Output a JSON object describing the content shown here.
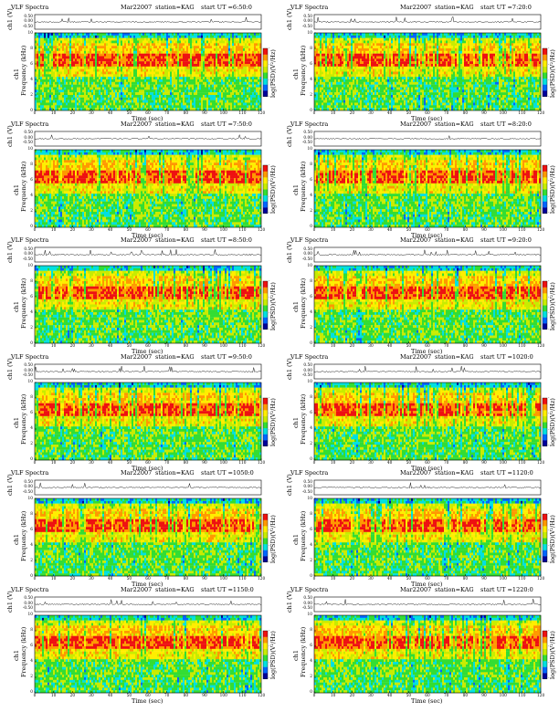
{
  "chart_data": [
    {
      "type": "heatmap",
      "title": "VLF Spectra",
      "date": "Mar22007",
      "station": "station=KAG",
      "start": "start  UT =6:50:0",
      "series": [
        {
          "name": "ch1"
        }
      ],
      "xlabel": "Time (sec)",
      "ylabel": "Frequency (kHz)",
      "waveform_label": "ch1 (V)",
      "colorbar_label": "log(PSD)(V²/Hz)",
      "xlim": [
        0,
        120
      ],
      "ylim": [
        0,
        10
      ],
      "x_ticks": [
        0,
        10,
        20,
        30,
        40,
        50,
        60,
        70,
        80,
        90,
        100,
        110,
        120
      ],
      "y_ticks": [
        0,
        2,
        4,
        6,
        8,
        10
      ],
      "waveform_ticks": [
        "0.50",
        "0.00",
        "-0.50"
      ],
      "colorbar_ticks": [
        "-",
        "-",
        "-",
        "-"
      ],
      "grid": false,
      "colormap": [
        "#00009a",
        "#0066ff",
        "#00e0e0",
        "#33dd33",
        "#c8ec00",
        "#ffee00",
        "#ff9900",
        "#ee1111"
      ]
    },
    {
      "type": "heatmap",
      "title": "VLF Spectra",
      "date": "Mar22007",
      "station": "station=KAG",
      "start": "start  UT =7:20:0",
      "series": [
        {
          "name": "ch1"
        }
      ],
      "xlabel": "Time (sec)",
      "ylabel": "Frequency (kHz)",
      "waveform_label": "ch1 (V)",
      "colorbar_label": "log(PSD)(V²/Hz)",
      "xlim": [
        0,
        120
      ],
      "ylim": [
        0,
        10
      ],
      "x_ticks": [
        0,
        10,
        20,
        30,
        40,
        50,
        60,
        70,
        80,
        90,
        100,
        110,
        120
      ],
      "y_ticks": [
        0,
        2,
        4,
        6,
        8,
        10
      ],
      "waveform_ticks": [
        "0.50",
        "0.00",
        "-0.50"
      ],
      "colorbar_ticks": [
        "-",
        "-",
        "-",
        "-"
      ],
      "grid": false,
      "colormap": [
        "#00009a",
        "#0066ff",
        "#00e0e0",
        "#33dd33",
        "#c8ec00",
        "#ffee00",
        "#ff9900",
        "#ee1111"
      ]
    },
    {
      "type": "heatmap",
      "title": "VLF Spectra",
      "date": "Mar22007",
      "station": "station=KAG",
      "start": "start  UT =7:50:0",
      "series": [
        {
          "name": "ch1"
        }
      ],
      "xlabel": "Time (sec)",
      "ylabel": "Frequency (kHz)",
      "waveform_label": "ch1 (V)",
      "colorbar_label": "log(PSD)(V²/Hz)",
      "xlim": [
        0,
        120
      ],
      "ylim": [
        0,
        10
      ],
      "x_ticks": [
        0,
        10,
        20,
        30,
        40,
        50,
        60,
        70,
        80,
        90,
        100,
        110,
        120
      ],
      "y_ticks": [
        0,
        2,
        4,
        6,
        8,
        10
      ],
      "waveform_ticks": [
        "0.50",
        "0.00",
        "-0.50"
      ],
      "colorbar_ticks": [
        "-",
        "-",
        "-",
        "-"
      ],
      "grid": false,
      "colormap": [
        "#00009a",
        "#0066ff",
        "#00e0e0",
        "#33dd33",
        "#c8ec00",
        "#ffee00",
        "#ff9900",
        "#ee1111"
      ]
    },
    {
      "type": "heatmap",
      "title": "VLF Spectra",
      "date": "Mar22007",
      "station": "station=KAG",
      "start": "start  UT =8:20:0",
      "series": [
        {
          "name": "ch1"
        }
      ],
      "xlabel": "Time (sec)",
      "ylabel": "Frequency (kHz)",
      "waveform_label": "ch1 (V)",
      "colorbar_label": "log(PSD)(V²/Hz)",
      "xlim": [
        0,
        120
      ],
      "ylim": [
        0,
        10
      ],
      "x_ticks": [
        0,
        10,
        20,
        30,
        40,
        50,
        60,
        70,
        80,
        90,
        100,
        110,
        120
      ],
      "y_ticks": [
        0,
        2,
        4,
        6,
        8,
        10
      ],
      "waveform_ticks": [
        "0.50",
        "0.00",
        "-0.50"
      ],
      "colorbar_ticks": [
        "-",
        "-",
        "-",
        "-"
      ],
      "grid": false,
      "colormap": [
        "#00009a",
        "#0066ff",
        "#00e0e0",
        "#33dd33",
        "#c8ec00",
        "#ffee00",
        "#ff9900",
        "#ee1111"
      ]
    },
    {
      "type": "heatmap",
      "title": "VLF Spectra",
      "date": "Mar22007",
      "station": "station=KAG",
      "start": "start  UT =8:50:0",
      "series": [
        {
          "name": "ch1"
        }
      ],
      "xlabel": "Time (sec)",
      "ylabel": "Frequency (kHz)",
      "waveform_label": "ch1 (V)",
      "colorbar_label": "log(PSD)(V²/Hz)",
      "xlim": [
        0,
        120
      ],
      "ylim": [
        0,
        10
      ],
      "x_ticks": [
        0,
        10,
        20,
        30,
        40,
        50,
        60,
        70,
        80,
        90,
        100,
        110,
        120
      ],
      "y_ticks": [
        0,
        2,
        4,
        6,
        8,
        10
      ],
      "waveform_ticks": [
        "0.50",
        "0.00",
        "-0.50"
      ],
      "colorbar_ticks": [
        "-",
        "-",
        "-",
        "-"
      ],
      "grid": false,
      "colormap": [
        "#00009a",
        "#0066ff",
        "#00e0e0",
        "#33dd33",
        "#c8ec00",
        "#ffee00",
        "#ff9900",
        "#ee1111"
      ]
    },
    {
      "type": "heatmap",
      "title": "VLF Spectra",
      "date": "Mar22007",
      "station": "station=KAG",
      "start": "start  UT =9:20:0",
      "series": [
        {
          "name": "ch1"
        }
      ],
      "xlabel": "Time (sec)",
      "ylabel": "Frequency (kHz)",
      "waveform_label": "ch1 (V)",
      "colorbar_label": "log(PSD)(V²/Hz)",
      "xlim": [
        0,
        120
      ],
      "ylim": [
        0,
        10
      ],
      "x_ticks": [
        0,
        10,
        20,
        30,
        40,
        50,
        60,
        70,
        80,
        90,
        100,
        110,
        120
      ],
      "y_ticks": [
        0,
        2,
        4,
        6,
        8,
        10
      ],
      "waveform_ticks": [
        "0.50",
        "0.00",
        "-0.50"
      ],
      "colorbar_ticks": [
        "-",
        "-",
        "-",
        "-"
      ],
      "grid": false,
      "colormap": [
        "#00009a",
        "#0066ff",
        "#00e0e0",
        "#33dd33",
        "#c8ec00",
        "#ffee00",
        "#ff9900",
        "#ee1111"
      ]
    },
    {
      "type": "heatmap",
      "title": "VLF Spectra",
      "date": "Mar22007",
      "station": "station=KAG",
      "start": "start  UT =9:50:0",
      "series": [
        {
          "name": "ch1"
        }
      ],
      "xlabel": "Time (sec)",
      "ylabel": "Frequency (kHz)",
      "waveform_label": "ch1 (V)",
      "colorbar_label": "log(PSD)(V²/Hz)",
      "xlim": [
        0,
        120
      ],
      "ylim": [
        0,
        10
      ],
      "x_ticks": [
        0,
        10,
        20,
        30,
        40,
        50,
        60,
        70,
        80,
        90,
        100,
        110,
        120
      ],
      "y_ticks": [
        0,
        2,
        4,
        6,
        8,
        10
      ],
      "waveform_ticks": [
        "0.50",
        "0.00",
        "-0.50"
      ],
      "colorbar_ticks": [
        "-",
        "-",
        "-",
        "-"
      ],
      "grid": false,
      "colormap": [
        "#00009a",
        "#0066ff",
        "#00e0e0",
        "#33dd33",
        "#c8ec00",
        "#ffee00",
        "#ff9900",
        "#ee1111"
      ]
    },
    {
      "type": "heatmap",
      "title": "VLF Spectra",
      "date": "Mar22007",
      "station": "station=KAG",
      "start": "start  UT =1020:0",
      "series": [
        {
          "name": "ch1"
        }
      ],
      "xlabel": "Time (sec)",
      "ylabel": "Frequency (kHz)",
      "waveform_label": "ch1 (V)",
      "colorbar_label": "log(PSD)(V²/Hz)",
      "xlim": [
        0,
        120
      ],
      "ylim": [
        0,
        10
      ],
      "x_ticks": [
        0,
        10,
        20,
        30,
        40,
        50,
        60,
        70,
        80,
        90,
        100,
        110,
        120
      ],
      "y_ticks": [
        0,
        2,
        4,
        6,
        8,
        10
      ],
      "waveform_ticks": [
        "0.50",
        "0.00",
        "-0.50"
      ],
      "colorbar_ticks": [
        "-",
        "-",
        "-",
        "-"
      ],
      "grid": false,
      "colormap": [
        "#00009a",
        "#0066ff",
        "#00e0e0",
        "#33dd33",
        "#c8ec00",
        "#ffee00",
        "#ff9900",
        "#ee1111"
      ]
    },
    {
      "type": "heatmap",
      "title": "VLF Spectra",
      "date": "Mar22007",
      "station": "station=KAG",
      "start": "start  UT =1050:0",
      "series": [
        {
          "name": "ch1"
        }
      ],
      "xlabel": "Time (sec)",
      "ylabel": "Frequency (kHz)",
      "waveform_label": "ch1 (V)",
      "colorbar_label": "log(PSD)(V²/Hz)",
      "xlim": [
        0,
        120
      ],
      "ylim": [
        0,
        10
      ],
      "x_ticks": [
        0,
        10,
        20,
        30,
        40,
        50,
        60,
        70,
        80,
        90,
        100,
        110,
        120
      ],
      "y_ticks": [
        0,
        2,
        4,
        6,
        8,
        10
      ],
      "waveform_ticks": [
        "0.50",
        "0.00",
        "-0.50"
      ],
      "colorbar_ticks": [
        "-",
        "-",
        "-",
        "-"
      ],
      "grid": false,
      "colormap": [
        "#00009a",
        "#0066ff",
        "#00e0e0",
        "#33dd33",
        "#c8ec00",
        "#ffee00",
        "#ff9900",
        "#ee1111"
      ]
    },
    {
      "type": "heatmap",
      "title": "VLF Spectra",
      "date": "Mar22007",
      "station": "station=KAG",
      "start": "start  UT =1120:0",
      "series": [
        {
          "name": "ch1"
        }
      ],
      "xlabel": "Time (sec)",
      "ylabel": "Frequency (kHz)",
      "waveform_label": "ch1 (V)",
      "colorbar_label": "log(PSD)(V²/Hz)",
      "xlim": [
        0,
        120
      ],
      "ylim": [
        0,
        10
      ],
      "x_ticks": [
        0,
        10,
        20,
        30,
        40,
        50,
        60,
        70,
        80,
        90,
        100,
        110,
        120
      ],
      "y_ticks": [
        0,
        2,
        4,
        6,
        8,
        10
      ],
      "waveform_ticks": [
        "0.50",
        "0.00",
        "-0.50"
      ],
      "colorbar_ticks": [
        "-",
        "-",
        "-",
        "-"
      ],
      "grid": false,
      "colormap": [
        "#00009a",
        "#0066ff",
        "#00e0e0",
        "#33dd33",
        "#c8ec00",
        "#ffee00",
        "#ff9900",
        "#ee1111"
      ]
    },
    {
      "type": "heatmap",
      "title": "VLF Spectra",
      "date": "Mar22007",
      "station": "station=KAG",
      "start": "start  UT =1150:0",
      "series": [
        {
          "name": "ch1"
        }
      ],
      "xlabel": "Time (sec)",
      "ylabel": "Frequency (kHz)",
      "waveform_label": "ch1 (V)",
      "colorbar_label": "log(PSD)(V²/Hz)",
      "xlim": [
        0,
        120
      ],
      "ylim": [
        0,
        10
      ],
      "x_ticks": [
        0,
        10,
        20,
        30,
        40,
        50,
        60,
        70,
        80,
        90,
        100,
        110,
        120
      ],
      "y_ticks": [
        0,
        2,
        4,
        6,
        8,
        10
      ],
      "waveform_ticks": [
        "0.50",
        "0.00",
        "-0.50"
      ],
      "colorbar_ticks": [
        "-",
        "-",
        "-",
        "-"
      ],
      "grid": false,
      "colormap": [
        "#00009a",
        "#0066ff",
        "#00e0e0",
        "#33dd33",
        "#c8ec00",
        "#ffee00",
        "#ff9900",
        "#ee1111"
      ]
    },
    {
      "type": "heatmap",
      "title": "VLF Spectra",
      "date": "Mar22007",
      "station": "station=KAG",
      "start": "start  UT =1220:0",
      "series": [
        {
          "name": "ch1"
        }
      ],
      "xlabel": "Time (sec)",
      "ylabel": "Frequency (kHz)",
      "waveform_label": "ch1 (V)",
      "colorbar_label": "log(PSD)(V²/Hz)",
      "xlim": [
        0,
        120
      ],
      "ylim": [
        0,
        10
      ],
      "x_ticks": [
        0,
        10,
        20,
        30,
        40,
        50,
        60,
        70,
        80,
        90,
        100,
        110,
        120
      ],
      "y_ticks": [
        0,
        2,
        4,
        6,
        8,
        10
      ],
      "waveform_ticks": [
        "0.50",
        "0.00",
        "-0.50"
      ],
      "colorbar_ticks": [
        "-",
        "-",
        "-",
        "-"
      ],
      "grid": false,
      "colormap": [
        "#00009a",
        "#0066ff",
        "#00e0e0",
        "#33dd33",
        "#c8ec00",
        "#ffee00",
        "#ff9900",
        "#ee1111"
      ]
    }
  ]
}
